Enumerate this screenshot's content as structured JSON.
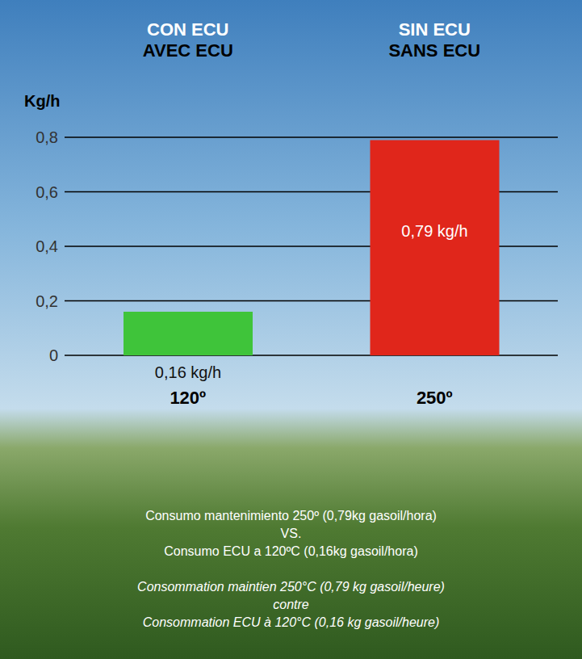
{
  "chart_data": {
    "type": "bar",
    "y_label": "Kg/h",
    "column_titles": [
      [
        "CON ECU",
        "AVEC ECU"
      ],
      [
        "SIN ECU",
        "SANS ECU"
      ]
    ],
    "categories": [
      "120º",
      "250º"
    ],
    "values": [
      0.16,
      0.79
    ],
    "value_labels": [
      "0,16 kg/h",
      "0,79 kg/h"
    ],
    "colors": [
      "#3fc43a",
      "#e0261b"
    ],
    "ylim": [
      0,
      0.8
    ],
    "yticks": [
      0,
      {
        "value": 0.2,
        "label": "0,2"
      },
      {
        "value": 0.4,
        "label": "0,4"
      },
      {
        "value": 0.6,
        "label": "0,6"
      },
      {
        "value": 0.8,
        "label": "0,8"
      }
    ],
    "grid": true,
    "data_labels": true,
    "annotations": [
      [
        "Consumo mantenimiento 250º (0,79kg gasoil/hora)",
        "VS.",
        "Consumo ECU a 120ºC (0,16kg gasoil/hora)"
      ],
      [
        "Consommation maintien 250°C (0,79 kg gasoil/heure)",
        "contre",
        "Consommation ECU à 120°C (0,16 kg gasoil/heure)"
      ]
    ]
  }
}
